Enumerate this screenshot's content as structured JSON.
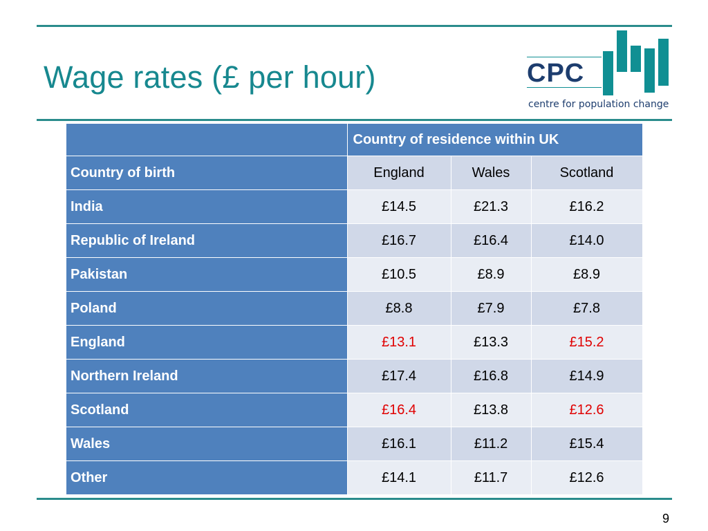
{
  "slide": {
    "title": "Wage rates (£ per hour)",
    "page_number": "9"
  },
  "logo": {
    "wordmark": "CPC",
    "tagline": "centre for population change",
    "color": "#108f93",
    "text_color": "#1d3d6e"
  },
  "table": {
    "group_header": "Country of residence within UK",
    "row_header_label": "Country of birth",
    "columns": [
      "England",
      "Wales",
      "Scotland"
    ],
    "rows": [
      {
        "label": "India",
        "values": [
          "£14.5",
          "£21.3",
          "£16.2"
        ],
        "highlight": [
          false,
          false,
          false
        ]
      },
      {
        "label": "Republic of Ireland",
        "values": [
          "£16.7",
          "£16.4",
          "£14.0"
        ],
        "highlight": [
          false,
          false,
          false
        ]
      },
      {
        "label": "Pakistan",
        "values": [
          "£10.5",
          "£8.9",
          "£8.9"
        ],
        "highlight": [
          false,
          false,
          false
        ]
      },
      {
        "label": "Poland",
        "values": [
          "£8.8",
          "£7.9",
          "£7.8"
        ],
        "highlight": [
          false,
          false,
          false
        ]
      },
      {
        "label": "England",
        "values": [
          "£13.1",
          "£13.3",
          "£15.2"
        ],
        "highlight": [
          true,
          false,
          true
        ]
      },
      {
        "label": "Northern Ireland",
        "values": [
          "£17.4",
          "£16.8",
          "£14.9"
        ],
        "highlight": [
          false,
          false,
          false
        ]
      },
      {
        "label": "Scotland",
        "values": [
          "£16.4",
          "£13.8",
          "£12.6"
        ],
        "highlight": [
          true,
          false,
          true
        ]
      },
      {
        "label": "Wales",
        "values": [
          "£16.1",
          "£11.2",
          "£15.4"
        ],
        "highlight": [
          false,
          false,
          false
        ]
      },
      {
        "label": "Other",
        "values": [
          "£14.1",
          "£11.7",
          "£12.6"
        ],
        "highlight": [
          false,
          false,
          false
        ]
      }
    ]
  },
  "colors": {
    "accent": "#2a8c8c",
    "title": "#17888f",
    "header_fill": "#4f81bd",
    "band_dark": "#d0d8e8",
    "band_light": "#e9edf4",
    "highlight_text": "#e00000"
  }
}
